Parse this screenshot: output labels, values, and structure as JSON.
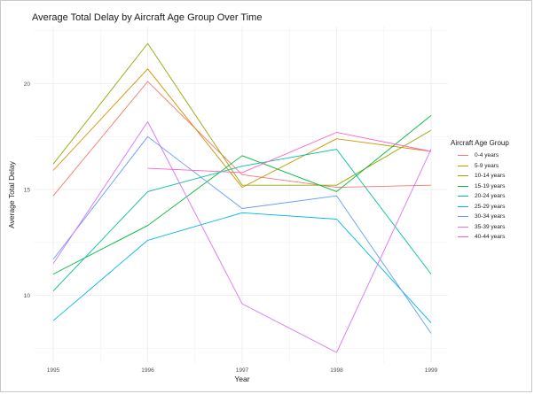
{
  "chart_data": {
    "type": "line",
    "title": "Average Total Delay by Aircraft Age Group Over Time",
    "xlabel": "Year",
    "ylabel": "Average Total Delay",
    "x": [
      1995,
      1996,
      1997,
      1998,
      1999
    ],
    "x_ticks": [
      "1995",
      "1996",
      "1997",
      "1998",
      "1999"
    ],
    "y_ticks": [
      10,
      15,
      20
    ],
    "xlim": [
      1995,
      1999
    ],
    "ylim": [
      6.8,
      22.7
    ],
    "grid": true,
    "legend_title": "Aircraft Age Group",
    "legend_position": "right",
    "series": [
      {
        "name": "0-4 years",
        "color": "#F8766D",
        "values": [
          14.7,
          20.1,
          15.7,
          15.1,
          15.2
        ]
      },
      {
        "name": "5-9 years",
        "color": "#D39200",
        "values": [
          15.9,
          20.7,
          15.1,
          17.4,
          16.8
        ]
      },
      {
        "name": "10-14 years",
        "color": "#93AA00",
        "values": [
          16.2,
          21.9,
          15.2,
          15.2,
          17.8
        ]
      },
      {
        "name": "15-19 years",
        "color": "#00BA38",
        "values": [
          11.0,
          13.3,
          16.6,
          14.9,
          18.5
        ]
      },
      {
        "name": "20-24 years",
        "color": "#00C19F",
        "values": [
          10.2,
          14.9,
          16.1,
          16.9,
          11.0
        ]
      },
      {
        "name": "25-29 years",
        "color": "#00B9E3",
        "values": [
          8.8,
          12.6,
          13.9,
          13.6,
          8.7
        ]
      },
      {
        "name": "30-34 years",
        "color": "#619CFF",
        "values": [
          11.7,
          17.5,
          14.1,
          14.7,
          8.2
        ]
      },
      {
        "name": "35-39 years",
        "color": "#DB72FB",
        "values": [
          11.5,
          18.2,
          9.6,
          7.3,
          16.9
        ]
      },
      {
        "name": "40-44 years",
        "color": "#FF61C3",
        "values": [
          null,
          16.0,
          15.8,
          17.7,
          16.8
        ]
      }
    ]
  }
}
